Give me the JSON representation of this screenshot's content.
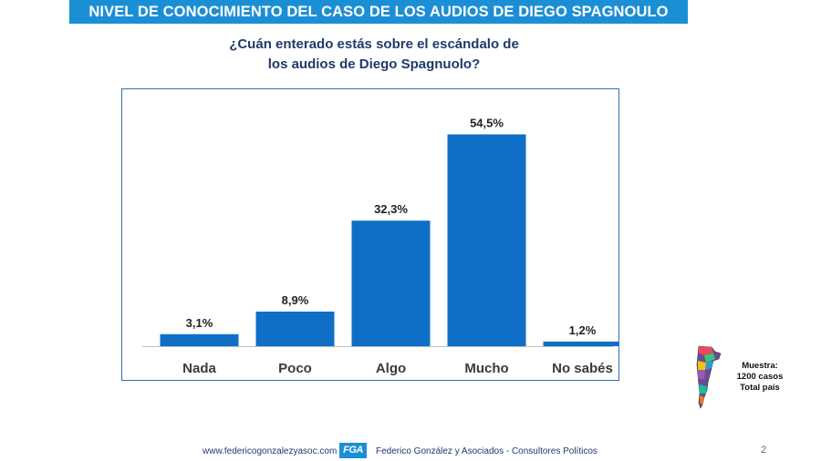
{
  "header": {
    "title": "NIVEL DE CONOCIMIENTO DEL CASO DE LOS AUDIOS DE DIEGO SPAGNOULO"
  },
  "question": {
    "line1": "¿Cuán enterado estás sobre el escándalo de",
    "line2": "los audios de Diego Spagnuolo?"
  },
  "chart_data": {
    "type": "bar",
    "title": "¿Cuán enterado estás sobre el escándalo de los audios de Diego Spagnuolo?",
    "categories": [
      "Nada",
      "Poco",
      "Algo",
      "Mucho",
      "No sabés"
    ],
    "values": [
      3.1,
      8.9,
      32.3,
      54.5,
      1.2
    ],
    "value_labels": [
      "3,1%",
      "8,9%",
      "32,3%",
      "54,5%",
      "1,2%"
    ],
    "xlabel": "",
    "ylabel": "",
    "ylim": [
      0,
      60
    ],
    "grid": false,
    "bar_color": "#0f6fc6"
  },
  "sample": {
    "line1": "Muestra:",
    "line2": "1200 casos",
    "line3": "Total país"
  },
  "footer": {
    "url": "www.federicogonzalezyasoc.com",
    "logo": "FGA",
    "company": "Federico González y Asociados - Consultores Políticos"
  },
  "page_number": "2",
  "colors": {
    "banner": "#1b8fd6",
    "bar": "#0f6fc6",
    "title_text": "#1f3a6b",
    "frame": "#2e6fb5"
  },
  "icons": {
    "map": "argentina-map-icon"
  }
}
